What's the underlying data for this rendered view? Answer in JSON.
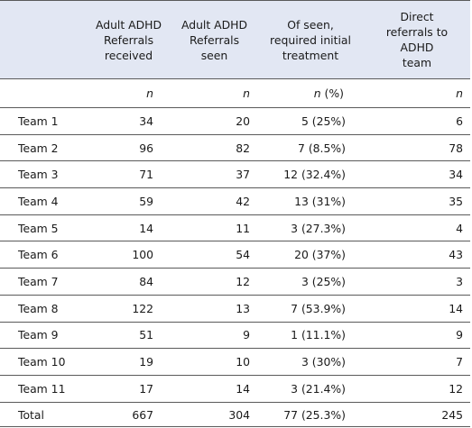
{
  "table": {
    "headers": {
      "col1": [
        "Adult ADHD",
        "Referrals",
        "received"
      ],
      "col2": [
        "Adult ADHD",
        "Referrals",
        "seen"
      ],
      "col3": [
        "Of seen,",
        "required initial",
        "treatment"
      ],
      "col4": [
        "Direct",
        "referrals to",
        "ADHD",
        "team"
      ]
    },
    "units": {
      "col1": "n",
      "col2": "n",
      "col3_n": "n",
      "col3_pct": " (%)",
      "col4": "n"
    },
    "rows": [
      {
        "team": "Team 1",
        "received": "34",
        "seen": "20",
        "treatment": "5 (25%)",
        "direct": "6"
      },
      {
        "team": "Team 2",
        "received": "96",
        "seen": "82",
        "treatment": "7 (8.5%)",
        "direct": "78"
      },
      {
        "team": "Team 3",
        "received": "71",
        "seen": "37",
        "treatment": "12 (32.4%)",
        "direct": "34"
      },
      {
        "team": "Team 4",
        "received": "59",
        "seen": "42",
        "treatment": "13 (31%)",
        "direct": "35"
      },
      {
        "team": "Team 5",
        "received": "14",
        "seen": "11",
        "treatment": "3 (27.3%)",
        "direct": "4"
      },
      {
        "team": "Team 6",
        "received": "100",
        "seen": "54",
        "treatment": "20 (37%)",
        "direct": "43"
      },
      {
        "team": "Team 7",
        "received": "84",
        "seen": "12",
        "treatment": "3 (25%)",
        "direct": "3"
      },
      {
        "team": "Team 8",
        "received": "122",
        "seen": "13",
        "treatment": "7 (53.9%)",
        "direct": "14"
      },
      {
        "team": "Team 9",
        "received": "51",
        "seen": "9",
        "treatment": "1 (11.1%)",
        "direct": "9"
      },
      {
        "team": "Team 10",
        "received": "19",
        "seen": "10",
        "treatment": "3 (30%)",
        "direct": "7"
      },
      {
        "team": "Team 11",
        "received": "17",
        "seen": "14",
        "treatment": "3 (21.4%)",
        "direct": "12"
      },
      {
        "team": "Total",
        "received": "667",
        "seen": "304",
        "treatment": "77 (25.3%)",
        "direct": "245"
      }
    ]
  },
  "colors": {
    "header_background": "#e2e7f3",
    "rule": "#5a5a5a",
    "text": "#1a1a1a"
  }
}
